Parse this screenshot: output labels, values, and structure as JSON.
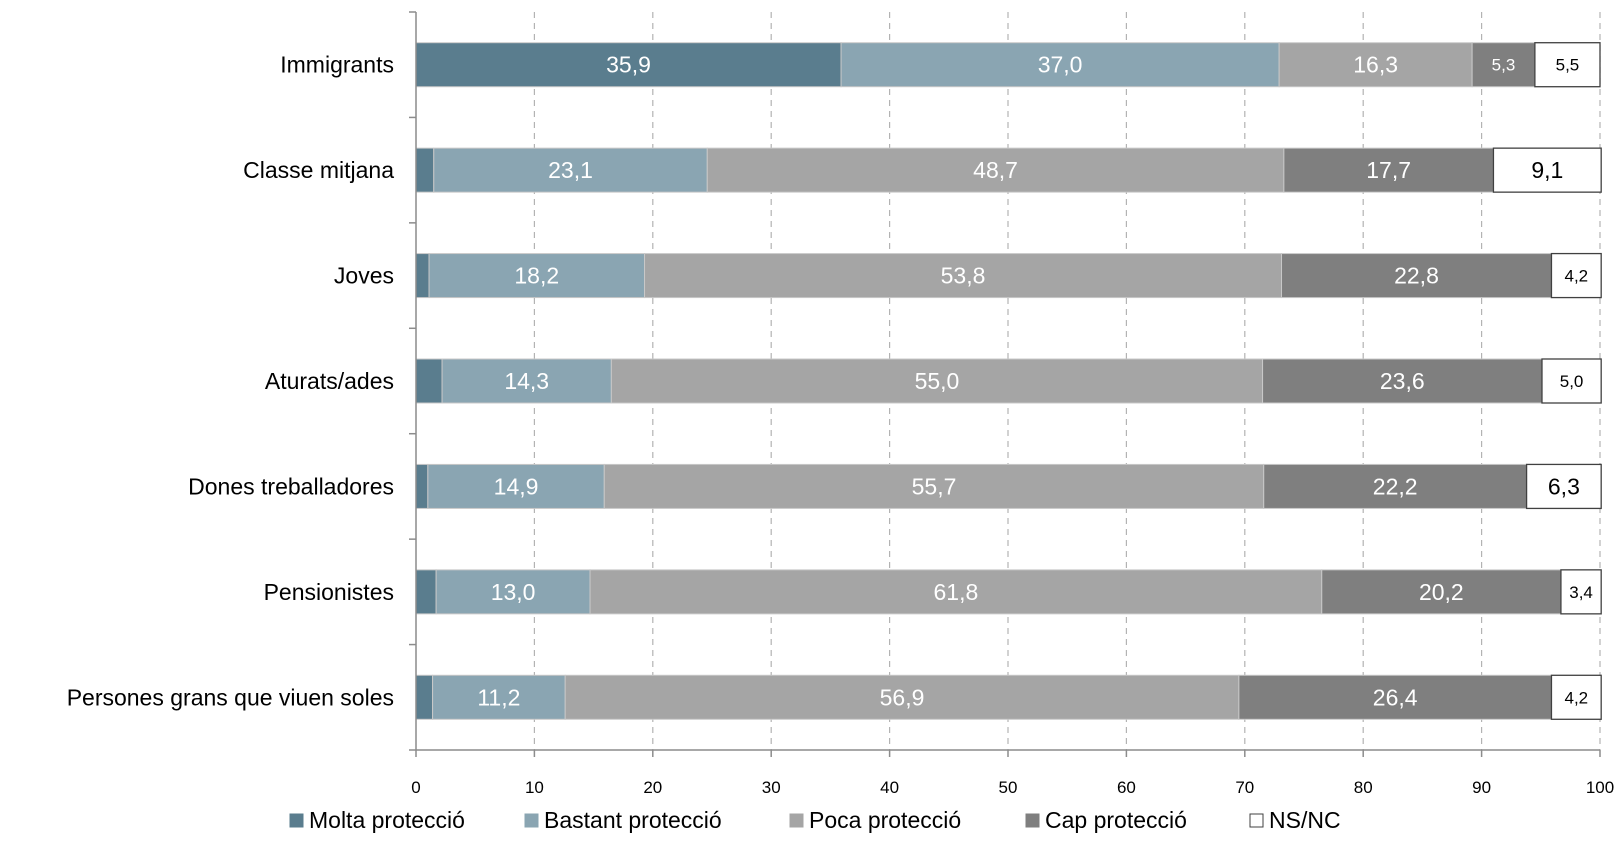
{
  "chart_data": {
    "type": "bar",
    "orientation": "horizontal",
    "stacked": true,
    "title": "",
    "xlabel": "",
    "ylabel": "",
    "xlim": [
      0,
      100
    ],
    "x_ticks": [
      0,
      10,
      20,
      30,
      40,
      50,
      60,
      70,
      80,
      90,
      100
    ],
    "grid": "vertical-dashed",
    "legend_position": "bottom",
    "categories": [
      "Immigrants",
      "Classe mitjana",
      "Joves",
      "Aturats/ades",
      "Dones treballadores",
      "Pensionistes",
      "Persones grans que viuen soles"
    ],
    "series": [
      {
        "name": "Molta protecció",
        "color": "#5a7d8e",
        "values": [
          35.9,
          1.5,
          1.1,
          2.2,
          1.0,
          1.7,
          1.4
        ],
        "labels": [
          "35,9",
          "",
          "",
          "",
          "",
          "",
          ""
        ]
      },
      {
        "name": "Bastant protecció",
        "color": "#8aa5b2",
        "values": [
          37.0,
          23.1,
          18.2,
          14.3,
          14.9,
          13.0,
          11.2
        ],
        "labels": [
          "37,0",
          "23,1",
          "18,2",
          "14,3",
          "14,9",
          "13,0",
          "11,2"
        ]
      },
      {
        "name": "Poca protecció",
        "color": "#a5a5a5",
        "values": [
          16.3,
          48.7,
          53.8,
          55.0,
          55.7,
          61.8,
          56.9
        ],
        "labels": [
          "16,3",
          "48,7",
          "53,8",
          "55,0",
          "55,7",
          "61,8",
          "56,9"
        ]
      },
      {
        "name": "Cap protecció",
        "color": "#7f7f7f",
        "values": [
          5.3,
          17.7,
          22.8,
          23.6,
          22.2,
          20.2,
          26.4
        ],
        "labels": [
          "5,3",
          "17,7",
          "22,8",
          "23,6",
          "22,2",
          "20,2",
          "26,4"
        ]
      },
      {
        "name": "NS/NC",
        "color": "#ffffff",
        "values": [
          5.5,
          9.1,
          4.2,
          5.0,
          6.3,
          3.4,
          4.2
        ],
        "labels": [
          "5,5",
          "9,1",
          "4,2",
          "5,0",
          "6,3",
          "3,4",
          "4,2"
        ]
      }
    ]
  }
}
